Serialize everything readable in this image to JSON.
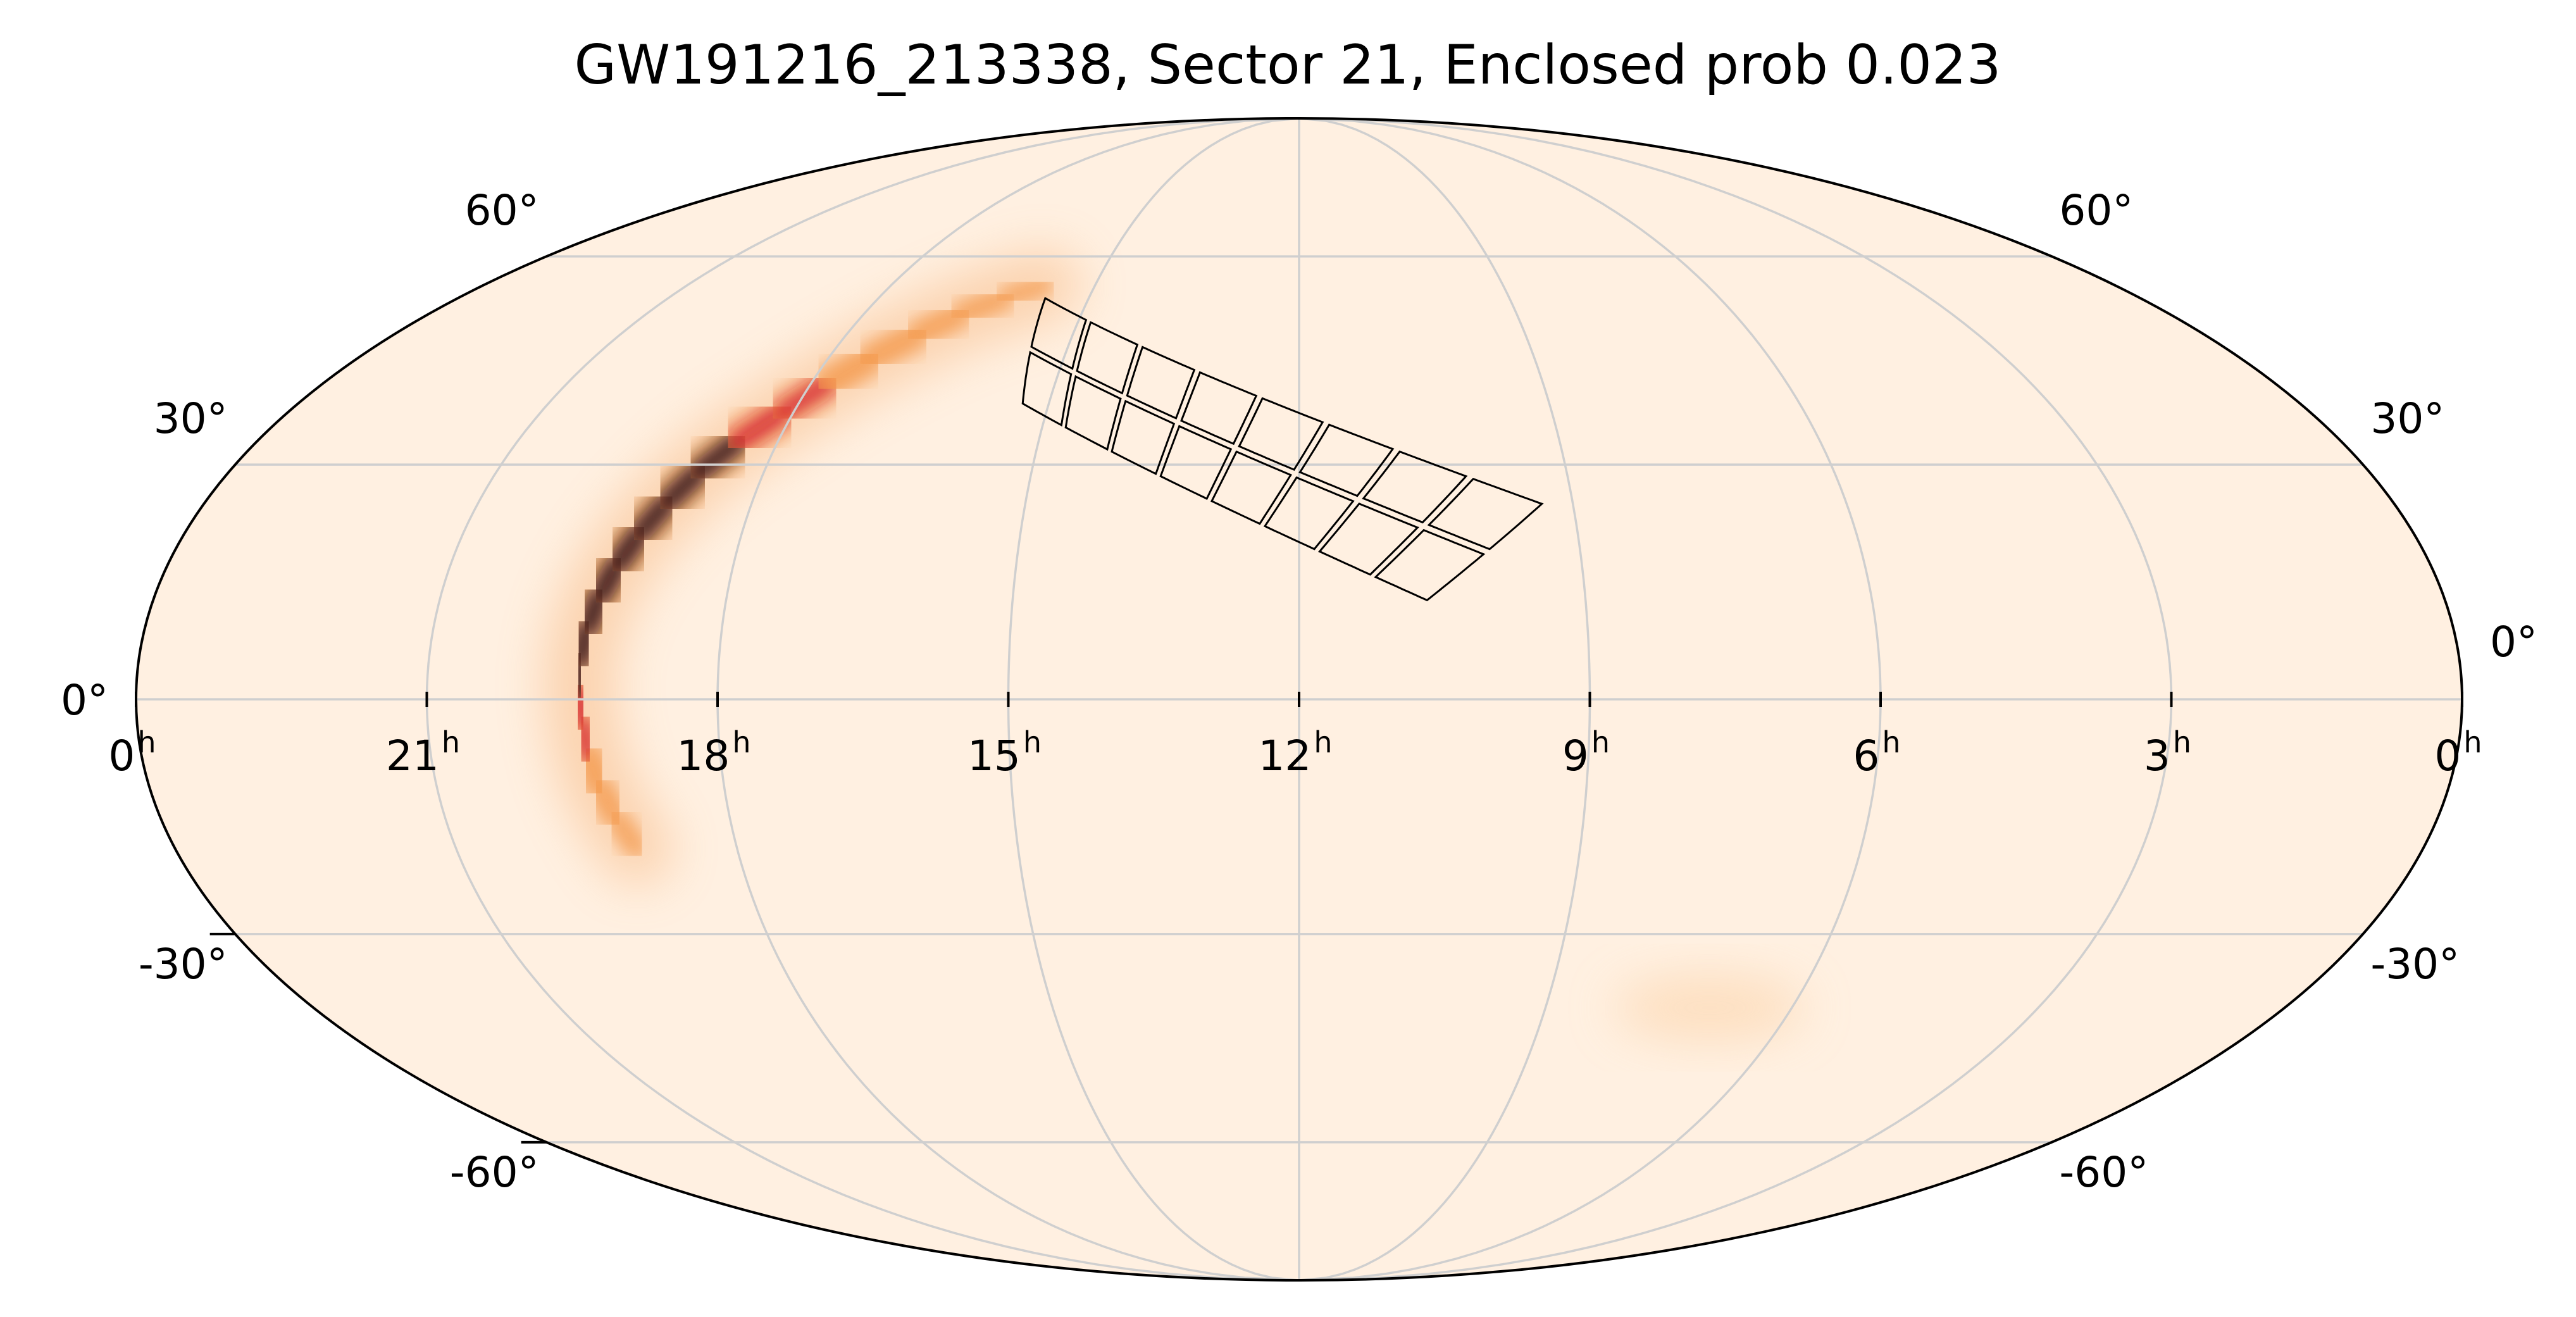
{
  "title": "GW191216_213338, Sector 21, Enclosed prob 0.023",
  "projection": "mollweide",
  "ra_ticks": [
    {
      "hours": 0,
      "label": "0",
      "unit": "h",
      "side": "left"
    },
    {
      "hours": 21,
      "label": "21",
      "unit": "h"
    },
    {
      "hours": 18,
      "label": "18",
      "unit": "h"
    },
    {
      "hours": 15,
      "label": "15",
      "unit": "h"
    },
    {
      "hours": 12,
      "label": "12",
      "unit": "h"
    },
    {
      "hours": 9,
      "label": "9",
      "unit": "h"
    },
    {
      "hours": 6,
      "label": "6",
      "unit": "h"
    },
    {
      "hours": 3,
      "label": "3",
      "unit": "h"
    },
    {
      "hours": 0,
      "label": "0",
      "unit": "h",
      "side": "right"
    }
  ],
  "dec_ticks": [
    {
      "deg": 60,
      "label": "60°"
    },
    {
      "deg": 30,
      "label": "30°"
    },
    {
      "deg": 0,
      "label": "0°"
    },
    {
      "deg": -30,
      "label": "-30°"
    },
    {
      "deg": -60,
      "label": "-60°"
    }
  ],
  "grid": true,
  "colors": {
    "background": "#fff0e1",
    "grid": "#cfcfcf",
    "outline": "#000000",
    "prob_high": "#1a0408",
    "prob_mid": "#d0182b",
    "prob_low": "#f49a4e"
  },
  "probability_band": [
    {
      "ra": 286,
      "dec": -19,
      "weight": 0.15
    },
    {
      "ra": 288,
      "dec": -15,
      "weight": 0.3
    },
    {
      "ra": 289.5,
      "dec": -11,
      "weight": 0.45
    },
    {
      "ra": 290.5,
      "dec": -7,
      "weight": 0.6
    },
    {
      "ra": 291,
      "dec": -3,
      "weight": 0.7
    },
    {
      "ra": 291.5,
      "dec": 1,
      "weight": 0.8
    },
    {
      "ra": 291.5,
      "dec": 5,
      "weight": 0.9
    },
    {
      "ra": 291,
      "dec": 9,
      "weight": 0.95
    },
    {
      "ra": 290,
      "dec": 13,
      "weight": 1.0
    },
    {
      "ra": 288.5,
      "dec": 17,
      "weight": 1.0
    },
    {
      "ra": 286.5,
      "dec": 21,
      "weight": 0.95
    },
    {
      "ra": 284,
      "dec": 25,
      "weight": 0.9
    },
    {
      "ra": 281,
      "dec": 29,
      "weight": 0.95
    },
    {
      "ra": 277,
      "dec": 33,
      "weight": 0.85
    },
    {
      "ra": 272,
      "dec": 37,
      "weight": 0.75
    },
    {
      "ra": 267,
      "dec": 41,
      "weight": 0.6
    },
    {
      "ra": 262,
      "dec": 44.5,
      "weight": 0.5
    },
    {
      "ra": 256,
      "dec": 48,
      "weight": 0.4
    },
    {
      "ra": 250,
      "dec": 51,
      "weight": 0.3
    },
    {
      "ra": 243,
      "dec": 53.5,
      "weight": 0.2
    },
    {
      "ra": 236,
      "dec": 55.5,
      "weight": 0.1
    }
  ],
  "faint_patch": {
    "ra": 105,
    "dec": -40,
    "width_deg": 35,
    "height_deg": 9
  },
  "sector_footprint": {
    "corners": [
      {
        "ra": 235,
        "dec": 54
      },
      {
        "ra": 139,
        "dec": 25
      },
      {
        "ra": 160,
        "dec": 12
      },
      {
        "ra": 230,
        "dec": 38
      }
    ],
    "cameras": 4,
    "ccds_along": 2,
    "ccds_across": 2
  }
}
